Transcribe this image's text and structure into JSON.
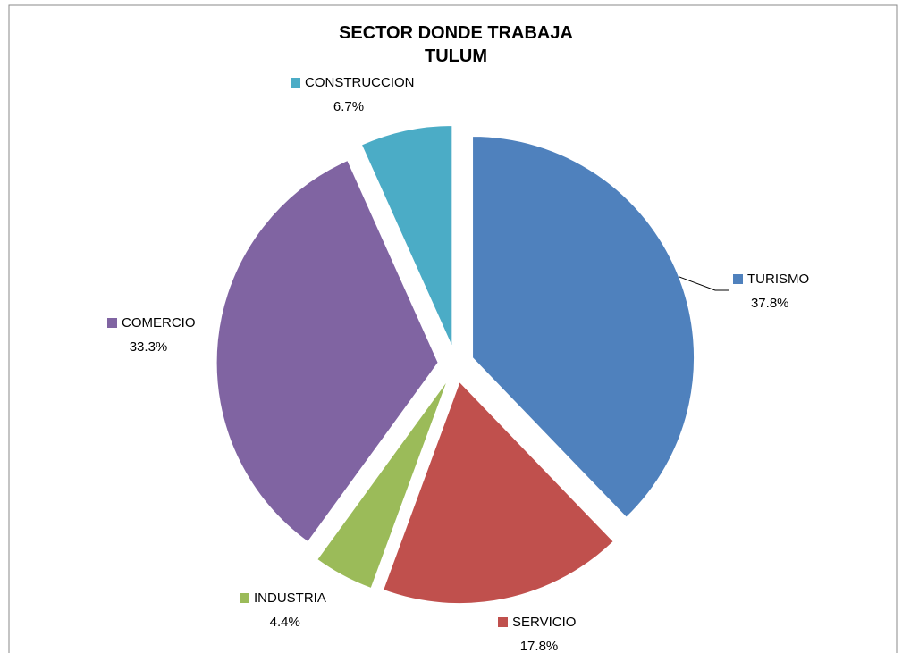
{
  "chart_data": {
    "type": "pie",
    "title": "SECTOR DONDE TRABAJA TULUM",
    "categories": [
      "TURISMO",
      "SERVICIO",
      "INDUSTRIA",
      "COMERCIO",
      "CONSTRUCCION"
    ],
    "values": [
      37.8,
      17.8,
      4.4,
      33.3,
      6.7
    ],
    "value_labels": [
      "37.8%",
      "17.8%",
      "4.4%",
      "33.3%",
      "6.7%"
    ],
    "colors": [
      "#4f81bd",
      "#c0504d",
      "#9bbb59",
      "#8064a2",
      "#4bacc6"
    ]
  }
}
